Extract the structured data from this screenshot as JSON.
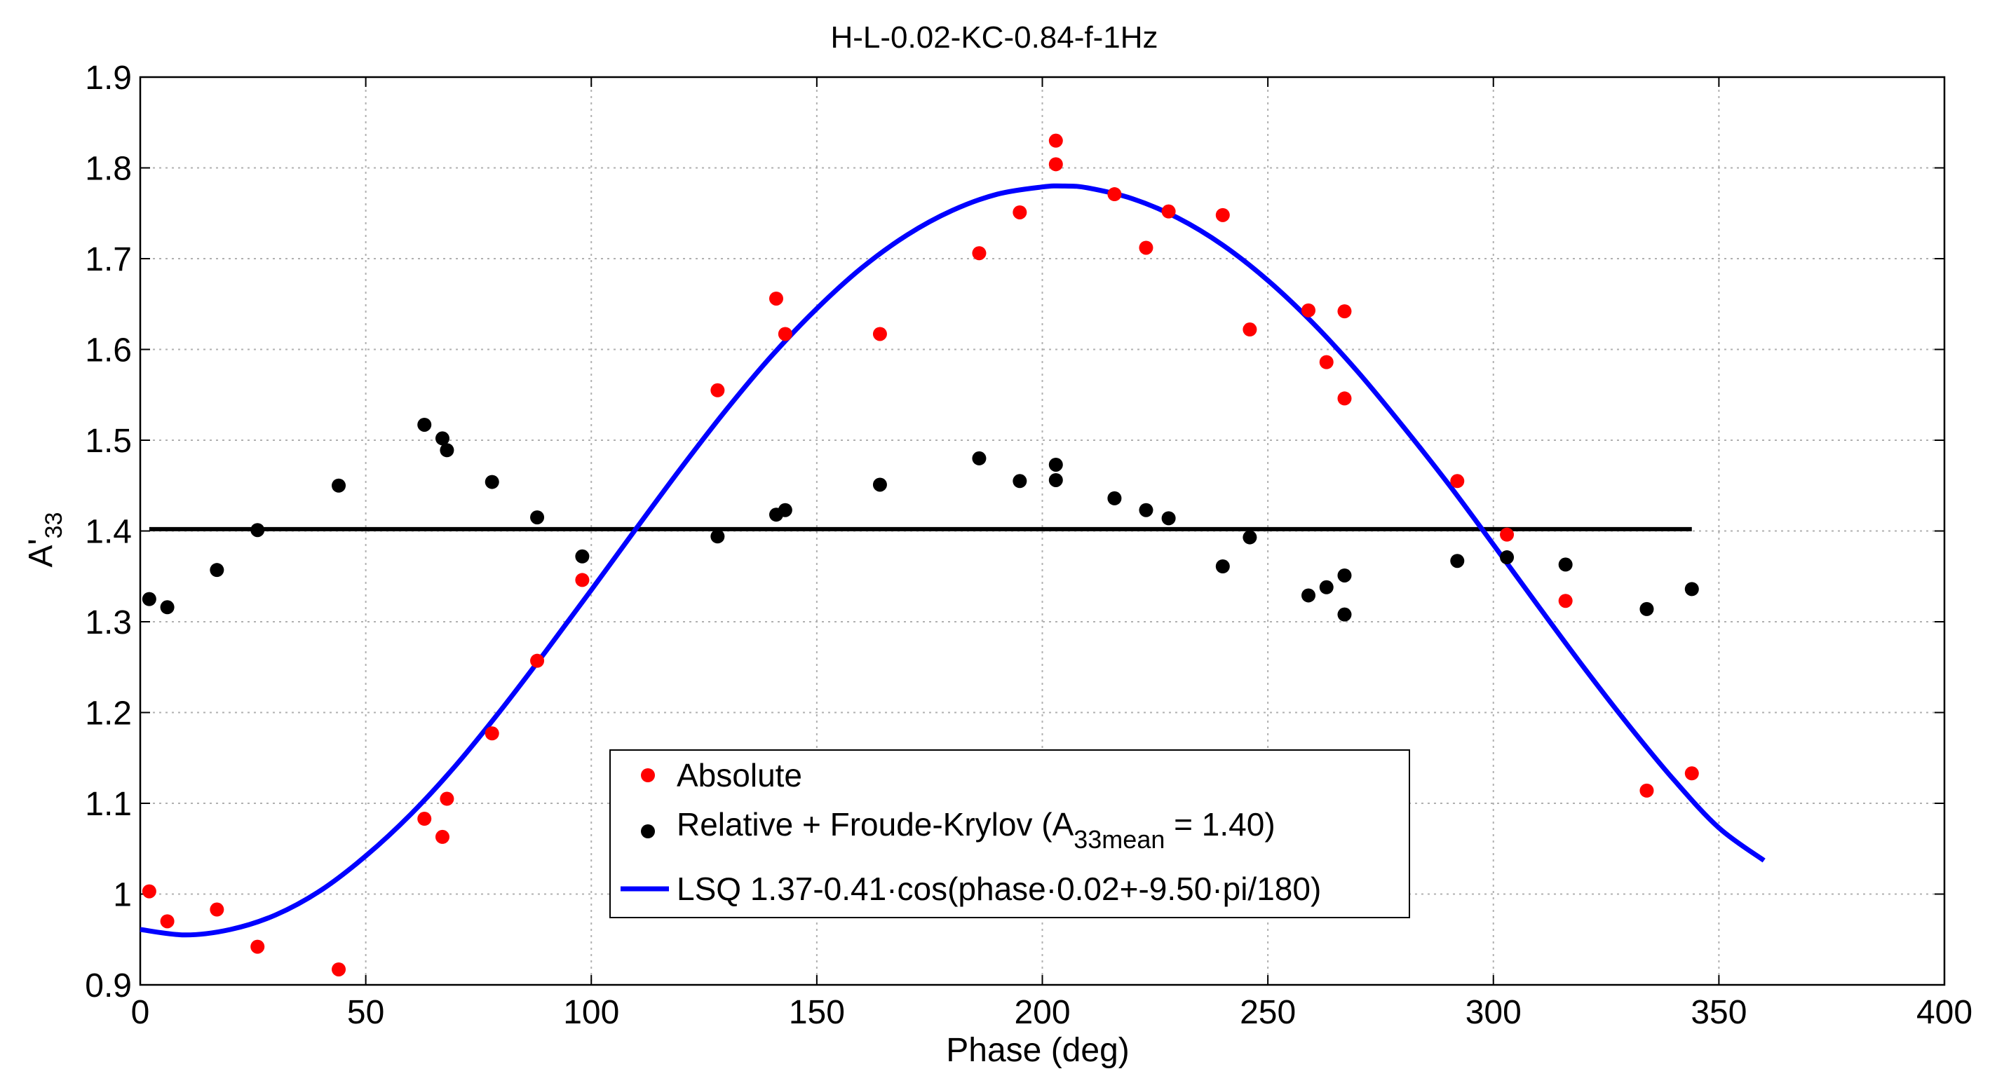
{
  "chart_data": {
    "type": "scatter",
    "title": "H-L-0.02-KC-0.84-f-1Hz",
    "xlabel": "Phase (deg)",
    "ylabel_main": "A'",
    "ylabel_sub": "33",
    "xlim": [
      0,
      400
    ],
    "ylim": [
      0.9,
      1.9
    ],
    "xticks": [
      0,
      50,
      100,
      150,
      200,
      250,
      300,
      350,
      400
    ],
    "xtick_labels": [
      "0",
      "50",
      "100",
      "150",
      "200",
      "250",
      "300",
      "350",
      "400"
    ],
    "yticks": [
      0.9,
      1.0,
      1.1,
      1.2,
      1.3,
      1.4,
      1.5,
      1.6,
      1.7,
      1.8,
      1.9
    ],
    "ytick_labels": [
      "0.9",
      "1",
      "1.1",
      "1.2",
      "1.3",
      "1.4",
      "1.5",
      "1.6",
      "1.7",
      "1.8",
      "1.9"
    ],
    "grid": true,
    "legend_position": "bottom-center",
    "colors": {
      "absolute": "#ff0000",
      "relative": "#000000",
      "fit": "#0000ff",
      "mean": "#000000"
    },
    "series": [
      {
        "name": "Absolute",
        "kind": "points",
        "x": [
          2,
          6,
          17,
          26,
          44,
          63,
          67,
          68,
          78,
          88,
          98,
          128,
          141,
          143,
          164,
          186,
          195,
          203,
          203,
          216,
          223,
          228,
          240,
          246,
          259,
          263,
          267,
          267,
          292,
          303,
          316,
          334,
          344
        ],
        "y": [
          1.003,
          0.97,
          0.983,
          0.942,
          0.917,
          1.083,
          1.063,
          1.105,
          1.177,
          1.257,
          1.346,
          1.555,
          1.656,
          1.617,
          1.617,
          1.706,
          1.751,
          1.804,
          1.83,
          1.771,
          1.712,
          1.752,
          1.748,
          1.622,
          1.643,
          1.586,
          1.546,
          1.642,
          1.455,
          1.396,
          1.323,
          1.114,
          1.133
        ]
      },
      {
        "name": "Relative + Froude-Krylov",
        "kind": "points",
        "x": [
          2,
          6,
          17,
          26,
          44,
          63,
          67,
          68,
          78,
          88,
          98,
          128,
          141,
          143,
          164,
          186,
          195,
          203,
          203,
          216,
          223,
          228,
          240,
          246,
          259,
          263,
          267,
          267,
          292,
          303,
          316,
          334,
          344
        ],
        "y": [
          1.325,
          1.316,
          1.357,
          1.401,
          1.45,
          1.517,
          1.502,
          1.489,
          1.454,
          1.415,
          1.372,
          1.394,
          1.418,
          1.423,
          1.451,
          1.48,
          1.455,
          1.456,
          1.473,
          1.436,
          1.423,
          1.414,
          1.361,
          1.393,
          1.329,
          1.338,
          1.308,
          1.351,
          1.367,
          1.371,
          1.363,
          1.314,
          1.336
        ]
      },
      {
        "name": "LSQ fit",
        "kind": "line",
        "x": [
          0,
          10,
          20,
          30,
          40,
          50,
          60,
          70,
          80,
          90,
          100,
          110,
          120,
          130,
          140,
          150,
          160,
          170,
          180,
          190,
          200,
          205,
          210,
          220,
          230,
          240,
          250,
          260,
          270,
          280,
          290,
          300,
          310,
          320,
          330,
          340,
          350,
          360
        ],
        "y": [
          0.961,
          0.955,
          0.961,
          0.977,
          1.004,
          1.042,
          1.088,
          1.142,
          1.203,
          1.268,
          1.335,
          1.403,
          1.47,
          1.534,
          1.593,
          1.645,
          1.69,
          1.726,
          1.753,
          1.771,
          1.779,
          1.78,
          1.778,
          1.766,
          1.745,
          1.715,
          1.676,
          1.629,
          1.575,
          1.515,
          1.452,
          1.385,
          1.317,
          1.25,
          1.186,
          1.126,
          1.073,
          1.037
        ]
      },
      {
        "name": "Mean",
        "kind": "line",
        "x": [
          2,
          344
        ],
        "y": [
          1.402,
          1.402
        ]
      }
    ],
    "legend": [
      {
        "label": "Absolute",
        "sub": "",
        "suffix": ""
      },
      {
        "label": "Relative + Froude-Krylov (A",
        "sub": "33mean",
        "suffix": " = 1.40)"
      },
      {
        "label": "LSQ 1.37-0.41·cos(phase·0.02+-9.50·pi/180)",
        "sub": "",
        "suffix": ""
      }
    ]
  }
}
